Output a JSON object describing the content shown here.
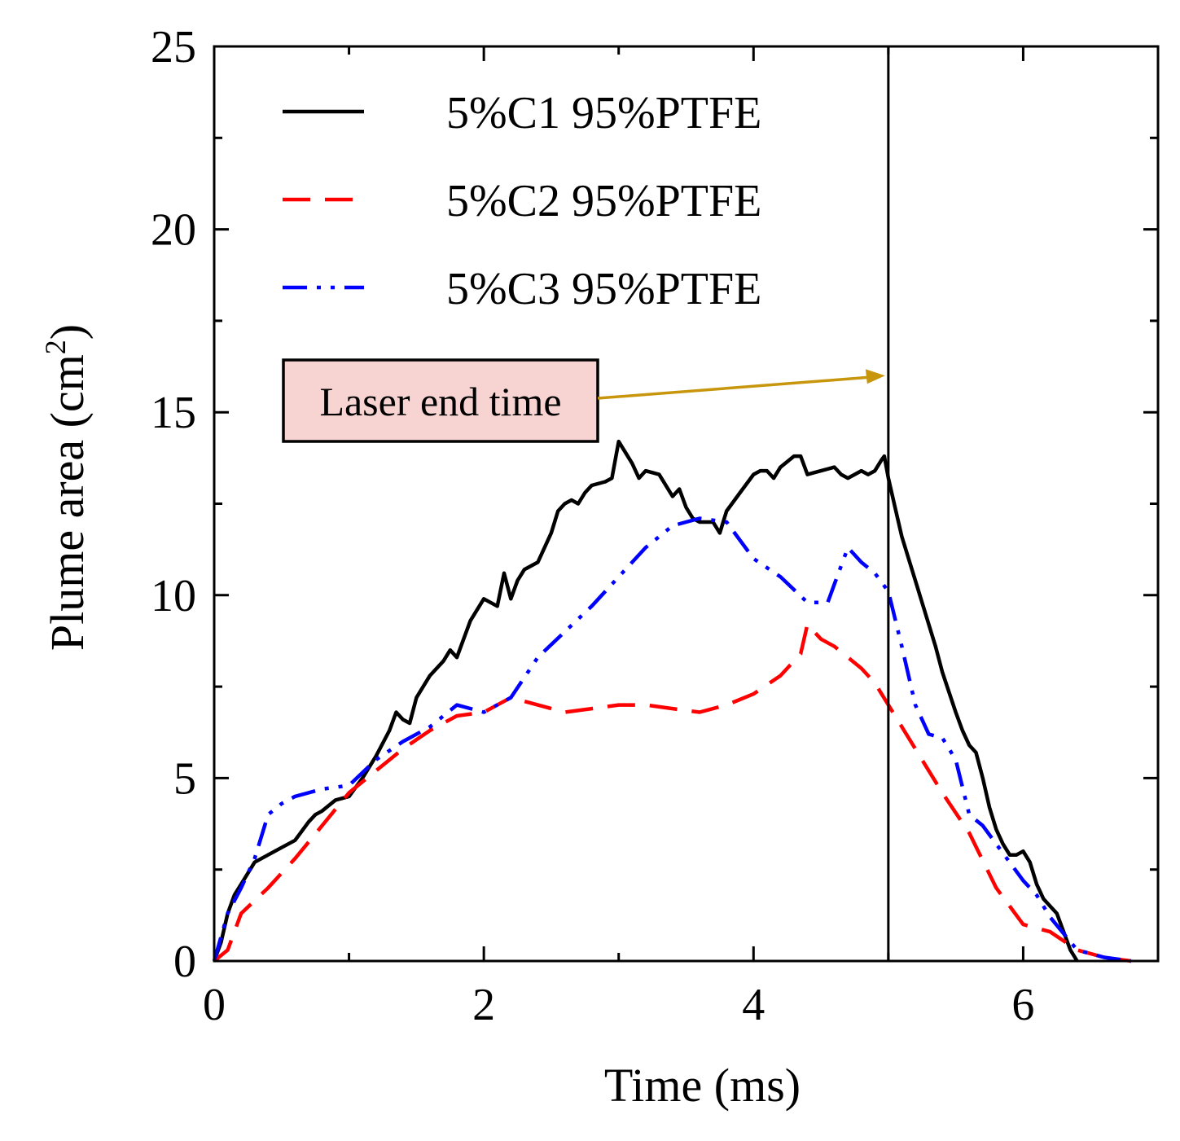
{
  "chart_data": {
    "type": "line",
    "title": "",
    "xlabel": "Time (ms)",
    "ylabel_main": "Plume area (cm",
    "ylabel_sup": "2",
    "ylabel_close": ")",
    "xlim": [
      0,
      7
    ],
    "ylim": [
      0,
      25
    ],
    "xticks": [
      0,
      2,
      4,
      6
    ],
    "yticks": [
      0,
      5,
      10,
      15,
      20,
      25
    ],
    "grid": false,
    "legend_position": "top-left",
    "series": [
      {
        "name": "5%C1 95%PTFE",
        "color": "#000000",
        "dash": "solid",
        "x": [
          0,
          0.05,
          0.1,
          0.15,
          0.2,
          0.3,
          0.4,
          0.5,
          0.6,
          0.7,
          0.75,
          0.8,
          0.9,
          1.0,
          1.1,
          1.2,
          1.3,
          1.35,
          1.4,
          1.45,
          1.5,
          1.6,
          1.7,
          1.75,
          1.8,
          1.9,
          2.0,
          2.1,
          2.15,
          2.2,
          2.25,
          2.3,
          2.4,
          2.5,
          2.55,
          2.6,
          2.65,
          2.7,
          2.75,
          2.8,
          2.9,
          2.95,
          3.0,
          3.05,
          3.1,
          3.15,
          3.2,
          3.3,
          3.4,
          3.45,
          3.5,
          3.55,
          3.6,
          3.7,
          3.75,
          3.8,
          3.9,
          4.0,
          4.05,
          4.1,
          4.15,
          4.2,
          4.3,
          4.35,
          4.4,
          4.5,
          4.6,
          4.65,
          4.7,
          4.75,
          4.8,
          4.85,
          4.9,
          4.95,
          4.97,
          5.0,
          5.05,
          5.1,
          5.2,
          5.3,
          5.35,
          5.4,
          5.5,
          5.55,
          5.6,
          5.65,
          5.7,
          5.75,
          5.8,
          5.85,
          5.9,
          5.95,
          6.0,
          6.05,
          6.1,
          6.15,
          6.2,
          6.25,
          6.3,
          6.35,
          6.4
        ],
        "values": [
          0,
          0.5,
          1.3,
          1.8,
          2.1,
          2.7,
          2.9,
          3.1,
          3.3,
          3.8,
          4.0,
          4.1,
          4.4,
          4.5,
          5.0,
          5.6,
          6.3,
          6.8,
          6.6,
          6.5,
          7.2,
          7.8,
          8.2,
          8.5,
          8.3,
          9.3,
          9.9,
          9.7,
          10.6,
          9.9,
          10.4,
          10.7,
          10.9,
          11.7,
          12.3,
          12.5,
          12.6,
          12.5,
          12.8,
          13.0,
          13.1,
          13.2,
          14.2,
          13.9,
          13.6,
          13.2,
          13.4,
          13.3,
          12.7,
          12.9,
          12.4,
          12.1,
          12.0,
          12.0,
          11.7,
          12.3,
          12.8,
          13.3,
          13.4,
          13.4,
          13.2,
          13.5,
          13.8,
          13.8,
          13.3,
          13.4,
          13.5,
          13.3,
          13.2,
          13.3,
          13.4,
          13.3,
          13.4,
          13.7,
          13.8,
          13.2,
          12.4,
          11.6,
          10.4,
          9.2,
          8.6,
          7.9,
          6.8,
          6.3,
          5.9,
          5.7,
          5.0,
          4.2,
          3.6,
          3.2,
          2.9,
          2.9,
          3.0,
          2.7,
          2.1,
          1.7,
          1.5,
          1.3,
          0.8,
          0.3,
          0.0
        ]
      },
      {
        "name": "5%C2 95%PTFE",
        "color": "#ff0000",
        "dash": "dashed",
        "x": [
          0,
          0.1,
          0.2,
          0.4,
          0.6,
          0.8,
          1.0,
          1.2,
          1.4,
          1.6,
          1.8,
          2.0,
          2.2,
          2.4,
          2.6,
          2.8,
          3.0,
          3.2,
          3.4,
          3.6,
          3.8,
          4.0,
          4.2,
          4.35,
          4.4,
          4.5,
          4.6,
          4.7,
          4.8,
          4.9,
          5.0,
          5.2,
          5.4,
          5.6,
          5.8,
          6.0,
          6.2,
          6.4,
          6.6,
          6.8
        ],
        "values": [
          0,
          0.3,
          1.3,
          2.0,
          2.8,
          3.7,
          4.6,
          5.2,
          5.8,
          6.3,
          6.7,
          6.8,
          7.2,
          7.0,
          6.8,
          6.9,
          7.0,
          7.0,
          6.9,
          6.8,
          7.0,
          7.3,
          7.8,
          8.4,
          9.2,
          8.8,
          8.6,
          8.3,
          8.0,
          7.6,
          7.0,
          5.8,
          4.6,
          3.5,
          2.0,
          1.0,
          0.8,
          0.3,
          0.1,
          0.0
        ]
      },
      {
        "name": "5%C3 95%PTFE",
        "color": "#0000ff",
        "dash": "dash-dot-dot",
        "x": [
          0,
          0.1,
          0.2,
          0.3,
          0.4,
          0.5,
          0.6,
          0.8,
          1.0,
          1.2,
          1.4,
          1.6,
          1.8,
          2.0,
          2.2,
          2.4,
          2.6,
          2.8,
          3.0,
          3.2,
          3.4,
          3.6,
          3.8,
          4.0,
          4.2,
          4.4,
          4.55,
          4.6,
          4.7,
          4.75,
          4.8,
          4.9,
          5.0,
          5.1,
          5.2,
          5.3,
          5.4,
          5.5,
          5.6,
          5.7,
          5.8,
          6.0,
          6.1,
          6.2,
          6.4,
          6.6,
          6.8
        ],
        "values": [
          0,
          1.3,
          2.0,
          2.8,
          4.0,
          4.3,
          4.5,
          4.7,
          4.8,
          5.5,
          6.0,
          6.4,
          7.0,
          6.8,
          7.2,
          8.3,
          9.0,
          9.7,
          10.5,
          11.3,
          11.9,
          12.1,
          12.0,
          11.0,
          10.5,
          9.8,
          9.8,
          10.3,
          11.3,
          11.1,
          10.9,
          10.6,
          10.1,
          8.6,
          7.0,
          6.2,
          6.1,
          5.5,
          4.0,
          3.7,
          3.2,
          2.2,
          1.8,
          1.2,
          0.3,
          0.1,
          0.0
        ]
      }
    ],
    "annotation": {
      "text": "Laser end time",
      "x": 5.0,
      "y": 16.0,
      "arrow_color": "#c8960c",
      "box_fill": "#f7d4d1",
      "line_color": "#000000"
    }
  }
}
